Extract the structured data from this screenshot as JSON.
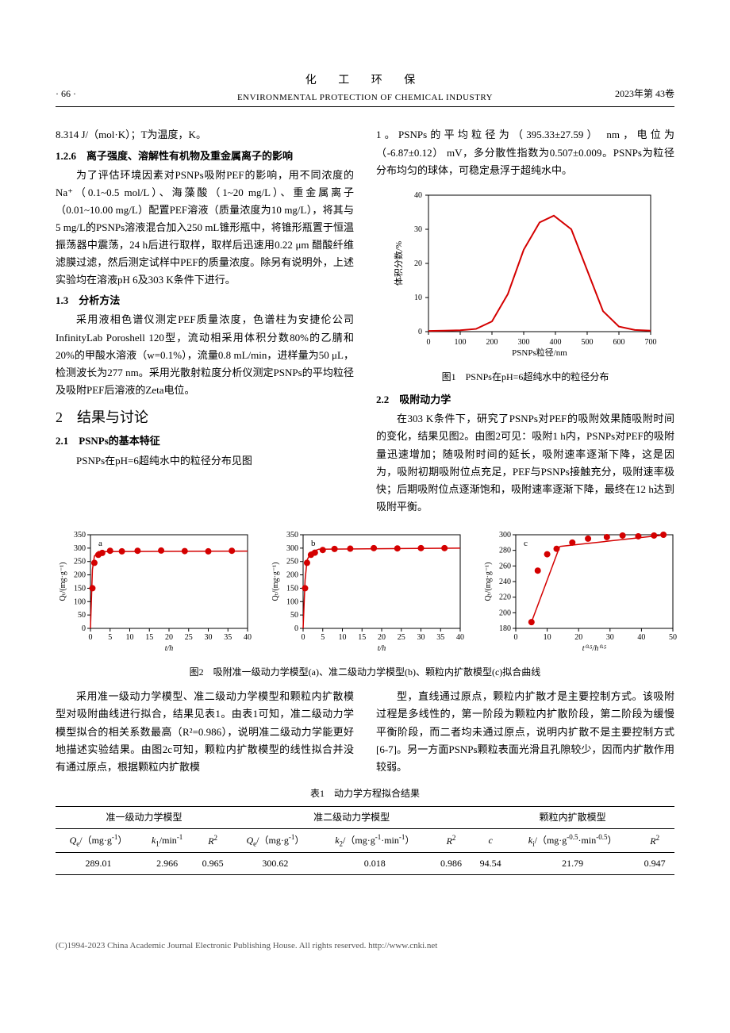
{
  "header": {
    "page_num": "· 66 ·",
    "journal_cn": "化  工  环  保",
    "journal_en": "ENVIRONMENTAL PROTECTION OF CHEMICAL INDUSTRY",
    "volume": "2023年第 43卷"
  },
  "left_col": {
    "p1": "8.314 J/（mol·K）；T为温度，K。",
    "h126": "1.2.6　离子强度、溶解性有机物及重金属离子的影响",
    "p2": "为了评估环境因素对PSNPs吸附PEF的影响，用不同浓度的Na⁺（0.1~0.5 mol/L）、海藻酸（1~20 mg/L）、重金属离子（0.01~10.00 mg/L）配置PEF溶液（质量浓度为10 mg/L），将其与5 mg/L的PSNPs溶液混合加入250 mL锥形瓶中，将锥形瓶置于恒温振荡器中震荡，24 h后进行取样，取样后迅速用0.22 μm 醋酸纤维滤膜过滤，然后测定试样中PEF的质量浓度。除另有说明外，上述实验均在溶液pH 6及303 K条件下进行。",
    "h13": "1.3　分析方法",
    "p3": "采用液相色谱仪测定PEF质量浓度，色谱柱为安捷伦公司InfinityLab Poroshell 120型，流动相采用体积分数80%的乙腈和20%的甲酸水溶液（w=0.1%），流量0.8 mL/min，进样量为50 μL，检测波长为277 nm。采用光散射粒度分析仪测定PSNPs的平均粒径及吸附PEF后溶液的Zeta电位。",
    "h2": "2　结果与讨论",
    "h21": "2.1　PSNPs的基本特征",
    "p4": "PSNPs在pH=6超纯水中的粒径分布见图"
  },
  "right_col": {
    "p1": "1。PSNPs的平均粒径为（395.33±27.59） nm，电位为（-6.87±0.12） mV，多分散性指数为0.507±0.009。PSNPs为粒径分布均匀的球体，可稳定悬浮于超纯水中。",
    "fig1_caption": "图1　PSNPs在pH=6超纯水中的粒径分布",
    "h22": "2.2　吸附动力学",
    "p2": "在303 K条件下，研究了PSNPs对PEF的吸附效果随吸附时间的变化，结果见图2。由图2可见：吸附1 h内，PSNPs对PEF的吸附量迅速增加；随吸附时间的延长，吸附速率逐渐下降，这是因为，吸附初期吸附位点充足，PEF与PSNPs接触充分，吸附速率极快；后期吸附位点逐渐饱和，吸附速率逐渐下降，最终在12 h达到吸附平衡。"
  },
  "fig1": {
    "type": "line",
    "title": "",
    "xlabel": "PSNPs粒径/nm",
    "ylabel": "体积分数/%",
    "xlim": [
      0,
      700
    ],
    "ylim": [
      0,
      40
    ],
    "xtick_step": 100,
    "ytick_step": 10,
    "line_color": "#d40000",
    "line_width": 2,
    "background_color": "#ffffff",
    "axis_color": "#000000",
    "font_size_label": 10,
    "data_x": [
      0,
      50,
      100,
      150,
      200,
      250,
      300,
      350,
      395,
      450,
      500,
      550,
      600,
      650,
      700
    ],
    "data_y": [
      0.2,
      0.3,
      0.4,
      0.8,
      3,
      11,
      24,
      32,
      34,
      30,
      18,
      6,
      1.5,
      0.5,
      0.3
    ]
  },
  "fig2": {
    "caption": "图2　吸附准一级动力学模型(a)、准二级动力学模型(b)、颗粒内扩散模型(c)拟合曲线",
    "panel_line_color": "#d40000",
    "panel_marker_color": "#d40000",
    "panel_marker_size": 4,
    "panel_line_width": 1.5,
    "axis_color": "#000000",
    "font_size_label": 10,
    "panels": [
      {
        "label": "a",
        "xlabel": "t/h",
        "ylabel": "Qₜ/(mg·g⁻¹)",
        "xlim": [
          0,
          40
        ],
        "ylim": [
          0,
          350
        ],
        "xtick_step": 5,
        "ytick_step": 50,
        "data_x": [
          0.5,
          1,
          2,
          3,
          5,
          8,
          12,
          18,
          24,
          30,
          36
        ],
        "data_y": [
          150,
          245,
          275,
          282,
          290,
          288,
          290,
          291,
          289,
          288,
          290
        ],
        "fit_x": [
          0,
          0.5,
          1,
          2,
          40
        ],
        "fit_y": [
          0,
          220,
          270,
          287,
          289
        ]
      },
      {
        "label": "b",
        "xlabel": "t/h",
        "ylabel": "Qₜ/(mg·g⁻¹)",
        "xlim": [
          0,
          40
        ],
        "ylim": [
          0,
          350
        ],
        "xtick_step": 5,
        "ytick_step": 50,
        "data_x": [
          0.5,
          1,
          2,
          3,
          5,
          8,
          12,
          18,
          24,
          30,
          36
        ],
        "data_y": [
          150,
          245,
          275,
          283,
          293,
          297,
          298,
          300,
          299,
          300,
          300
        ],
        "fit_x": [
          0,
          0.5,
          1,
          2,
          4,
          40
        ],
        "fit_y": [
          0,
          180,
          255,
          285,
          296,
          300
        ]
      },
      {
        "label": "c",
        "xlabel": "t⁰·⁵/h⁰·⁵",
        "ylabel": "Qₜ/(mg·g⁻¹)",
        "xlim": [
          0,
          50
        ],
        "ylim": [
          180,
          300
        ],
        "xtick_step": 10,
        "ytick_step": 20,
        "custom_ylim": true,
        "data_x": [
          5,
          7,
          10,
          13,
          18,
          23,
          29,
          34,
          39,
          44,
          47
        ],
        "data_y": [
          188,
          254,
          275,
          282,
          290,
          295,
          297,
          299,
          298,
          299,
          300
        ],
        "fit_segments": [
          {
            "x": [
              5,
              14
            ],
            "y": [
              188,
              285
            ]
          },
          {
            "x": [
              14,
              48
            ],
            "y": [
              285,
              300
            ]
          }
        ]
      }
    ]
  },
  "bottom_text": {
    "left": "采用准一级动力学模型、准二级动力学模型和颗粒内扩散模型对吸附曲线进行拟合，结果见表1。由表1可知，准二级动力学模型拟合的相关系数最高（R²=0.986），说明准二级动力学能更好地描述实验结果。由图2c可知，颗粒内扩散模型的线性拟合并没有通过原点，根据颗粒内扩散模",
    "right": "型，直线通过原点，颗粒内扩散才是主要控制方式。该吸附过程是多线性的，第一阶段为颗粒内扩散阶段，第二阶段为缓慢平衡阶段，而二者均未通过原点，说明内扩散不是主要控制方式[6-7]。另一方面PSNPs颗粒表面光滑且孔隙较少，因而内扩散作用较弱。"
  },
  "table1": {
    "title": "表1　动力学方程拟合结果",
    "groups": [
      "准一级动力学模型",
      "准二级动力学模型",
      "颗粒内扩散模型"
    ],
    "columns": [
      "Qₑ/（mg·g⁻¹）",
      "k₁/min⁻¹",
      "R²",
      "Qₑ/（mg·g⁻¹）",
      "k₂/（mg·g⁻¹·min⁻¹）",
      "R²",
      "c",
      "kᵢ/（mg·g⁻⁰·⁵·min⁻⁰·⁵）",
      "R²"
    ],
    "row": [
      "289.01",
      "2.966",
      "0.965",
      "300.62",
      "0.018",
      "0.986",
      "94.54",
      "21.79",
      "0.947"
    ]
  },
  "footer": "(C)1994-2023 China Academic Journal Electronic Publishing House. All rights reserved.   http://www.cnki.net"
}
